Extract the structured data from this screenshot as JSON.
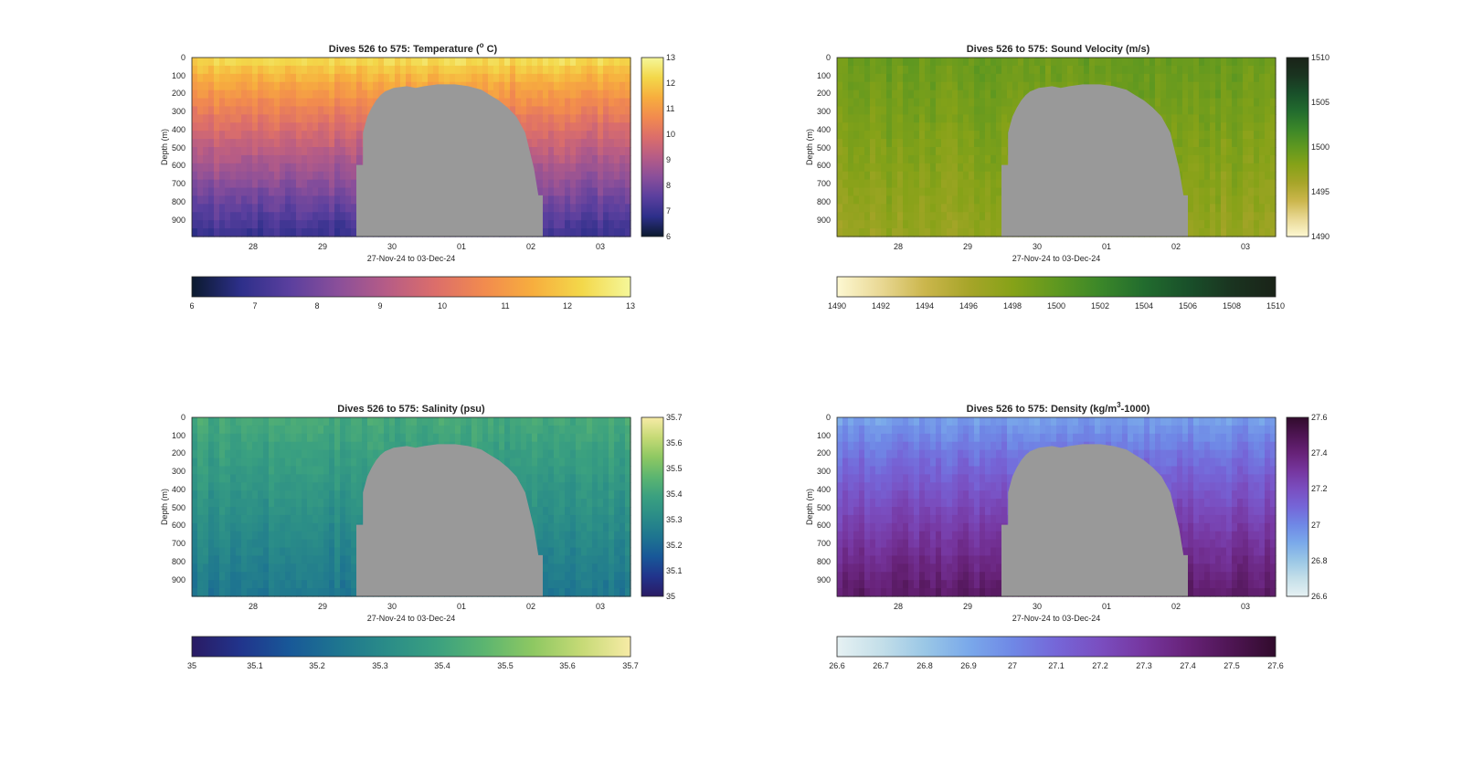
{
  "figure": {
    "type": "multi-panel depth-time section plots",
    "background": "#ffffff",
    "gap_color": "#999999"
  },
  "chart_data": [
    {
      "type": "heatmap",
      "panel": "temperature",
      "title": "Dives 526 to 575: Temperature (° C)",
      "title_parts": [
        "Dives 526 to 575: Temperature (",
        "o",
        " C)"
      ],
      "ylabel": "Depth (m)",
      "xlabel": "27-Nov-24 to 03-Dec-24",
      "x_ticks": [
        "28",
        "29",
        "30",
        "01",
        "02",
        "03"
      ],
      "y_ticks": [
        "0",
        "100",
        "200",
        "300",
        "400",
        "500",
        "600",
        "700",
        "800",
        "900"
      ],
      "ylim": [
        0,
        990
      ],
      "y_reversed": true,
      "colorbar_right_ticks": [
        "13",
        "12",
        "11",
        "10",
        "9",
        "8",
        "7",
        "6"
      ],
      "colorbar_bottom_ticks": [
        "6",
        "7",
        "8",
        "9",
        "10",
        "11",
        "12",
        "13"
      ],
      "clim": [
        6,
        13
      ],
      "colormap": [
        "#0b1a2e",
        "#2d2f8a",
        "#5a3f9e",
        "#8a4f9a",
        "#b65c86",
        "#dc6e6a",
        "#f28b4e",
        "#f7ae3e",
        "#f3d84a",
        "#f5f79a"
      ],
      "surface_value": 12.5,
      "deep_value": 7.0,
      "mix_exponent": 0.8
    },
    {
      "type": "heatmap",
      "panel": "sound_velocity",
      "title": "Dives 526 to 575: Sound Velocity (m/s)",
      "ylabel": "Depth (m)",
      "xlabel": "27-Nov-24 to 03-Dec-24",
      "x_ticks": [
        "28",
        "29",
        "30",
        "01",
        "02",
        "03"
      ],
      "y_ticks": [
        "0",
        "100",
        "200",
        "300",
        "400",
        "500",
        "600",
        "700",
        "800",
        "900"
      ],
      "ylim": [
        0,
        990
      ],
      "y_reversed": true,
      "colorbar_right_ticks": [
        "1510",
        "1505",
        "1500",
        "1495",
        "1490"
      ],
      "colorbar_bottom_ticks": [
        "1490",
        "1492",
        "1494",
        "1496",
        "1498",
        "1500",
        "1502",
        "1504",
        "1506",
        "1508",
        "1510"
      ],
      "clim": [
        1490,
        1510
      ],
      "colormap": [
        "#fdf8d2",
        "#e9d894",
        "#cbb64c",
        "#a7a529",
        "#86a218",
        "#5f9820",
        "#3b8729",
        "#226c2e",
        "#19502a",
        "#1a3420",
        "#1a2318"
      ],
      "surface_value": 1499.5,
      "deep_value": 1497.0,
      "mix_exponent": 1.0
    },
    {
      "type": "heatmap",
      "panel": "salinity",
      "title": "Dives 526 to 575: Salinity (psu)",
      "ylabel": "Depth (m)",
      "xlabel": "27-Nov-24 to 03-Dec-24",
      "x_ticks": [
        "28",
        "29",
        "30",
        "01",
        "02",
        "03"
      ],
      "y_ticks": [
        "0",
        "100",
        "200",
        "300",
        "400",
        "500",
        "600",
        "700",
        "800",
        "900"
      ],
      "ylim": [
        0,
        990
      ],
      "y_reversed": true,
      "colorbar_right_ticks": [
        "35.7",
        "35.6",
        "35.5",
        "35.4",
        "35.3",
        "35.2",
        "35.1",
        "35"
      ],
      "colorbar_bottom_ticks": [
        "35",
        "35.1",
        "35.2",
        "35.3",
        "35.4",
        "35.5",
        "35.6",
        "35.7"
      ],
      "clim": [
        35,
        35.7
      ],
      "colormap": [
        "#2a1b64",
        "#21348c",
        "#185898",
        "#1e7590",
        "#2a8c88",
        "#3aa080",
        "#5cb570",
        "#8ec862",
        "#c6da76",
        "#f7eba6"
      ],
      "surface_value": 35.42,
      "deep_value": 35.24,
      "mix_exponent": 1.0
    },
    {
      "type": "heatmap",
      "panel": "density",
      "title": "Dives 526 to 575: Density (kg/m³-1000)",
      "title_parts": [
        "Dives 526 to 575: Density (kg/m",
        "3",
        "-1000)"
      ],
      "ylabel": "Depth (m)",
      "xlabel": "27-Nov-24 to 03-Dec-24",
      "x_ticks": [
        "28",
        "29",
        "30",
        "01",
        "02",
        "03"
      ],
      "y_ticks": [
        "0",
        "100",
        "200",
        "300",
        "400",
        "500",
        "600",
        "700",
        "800",
        "900"
      ],
      "ylim": [
        0,
        990
      ],
      "y_reversed": true,
      "colorbar_right_ticks": [
        "27.6",
        "27.4",
        "27.2",
        "27",
        "26.8",
        "26.6"
      ],
      "colorbar_bottom_ticks": [
        "26.6",
        "26.7",
        "26.8",
        "26.9",
        "27",
        "27.1",
        "27.2",
        "27.3",
        "27.4",
        "27.5",
        "27.6"
      ],
      "clim": [
        26.6,
        27.6
      ],
      "colormap": [
        "#e6f1f3",
        "#c4dfe9",
        "#9ac7e6",
        "#7aa9ea",
        "#6f88e6",
        "#7566d8",
        "#7a4ec0",
        "#76369f",
        "#672278",
        "#4e1553",
        "#310b2c"
      ],
      "surface_value": 26.92,
      "deep_value": 27.45,
      "mix_exponent": 0.85
    }
  ]
}
